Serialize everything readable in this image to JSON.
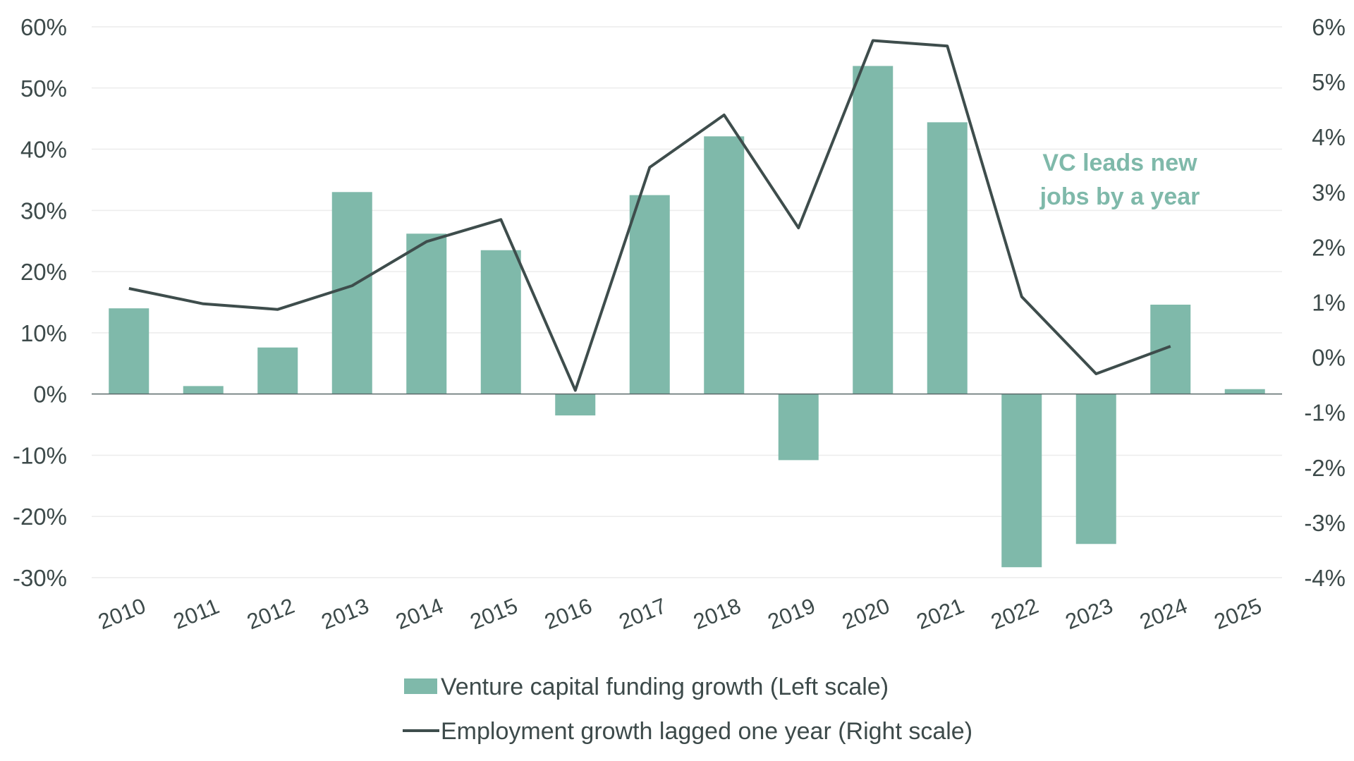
{
  "chart_data": {
    "type": "bar",
    "categories": [
      "2010",
      "2011",
      "2012",
      "2013",
      "2014",
      "2015",
      "2016",
      "2017",
      "2018",
      "2019",
      "2020",
      "2021",
      "2022",
      "2023",
      "2024",
      "2025"
    ],
    "series": [
      {
        "name": "Venture capital funding growth (Left scale)",
        "type": "bar",
        "axis": "left",
        "color": "#7fb9aa",
        "values": [
          14.0,
          1.3,
          7.6,
          33.0,
          26.2,
          23.5,
          -3.5,
          32.5,
          42.1,
          -10.8,
          53.6,
          44.4,
          -28.3,
          -24.5,
          14.6,
          0.8
        ]
      },
      {
        "name": "Employment growth lagged one year (Right scale)",
        "type": "line",
        "axis": "right",
        "color": "#3e4d4c",
        "values": [
          1.25,
          0.97,
          0.87,
          1.3,
          2.1,
          2.5,
          -0.6,
          3.45,
          4.4,
          2.35,
          5.75,
          5.65,
          1.1,
          -0.3,
          0.2,
          null
        ]
      }
    ],
    "left_axis": {
      "ticks": [
        "60%",
        "50%",
        "40%",
        "30%",
        "20%",
        "10%",
        "0%",
        "-10%",
        "-20%",
        "-30%"
      ],
      "ylim": [
        -30,
        60
      ]
    },
    "right_axis": {
      "ticks": [
        "6%",
        "5%",
        "4%",
        "3%",
        "2%",
        "1%",
        "0%",
        "-1%",
        "-2%",
        "-3%",
        "-4%"
      ],
      "ylim": [
        -4,
        6
      ]
    },
    "annotation": [
      "VC leads new",
      "jobs by a year"
    ],
    "grid": true,
    "legend_position": "bottom"
  }
}
